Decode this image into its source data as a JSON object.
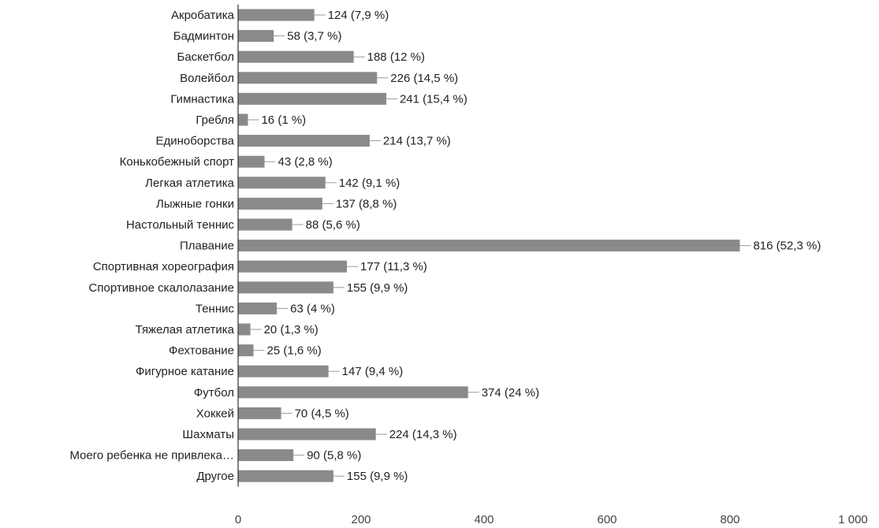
{
  "chart_data": {
    "type": "bar",
    "orientation": "horizontal",
    "categories": [
      "Акробатика",
      "Бадминтон",
      "Баскетбол",
      "Волейбол",
      "Гимнастика",
      "Гребля",
      "Единоборства",
      "Конькобежный спорт",
      "Легкая атлетика",
      "Лыжные гонки",
      "Настольный теннис",
      "Плавание",
      "Спортивная хореография",
      "Спортивное скалолазание",
      "Теннис",
      "Тяжелая атлетика",
      "Фехтование",
      "Фигурное катание",
      "Футбол",
      "Хоккей",
      "Шахматы",
      "Моего ребенка не привлека…",
      "Другое"
    ],
    "values": [
      124,
      58,
      188,
      226,
      241,
      16,
      214,
      43,
      142,
      137,
      88,
      816,
      177,
      155,
      63,
      20,
      25,
      147,
      374,
      70,
      224,
      90,
      155
    ],
    "value_labels": [
      "124 (7,9 %)",
      "58 (3,7 %)",
      "188 (12 %)",
      "226 (14,5 %)",
      "241 (15,4 %)",
      "16 (1 %)",
      "214 (13,7 %)",
      "43 (2,8 %)",
      "142 (9,1 %)",
      "137 (8,8 %)",
      "88 (5,6 %)",
      "816 (52,3 %)",
      "177 (11,3 %)",
      "155 (9,9 %)",
      "63 (4 %)",
      "20 (1,3 %)",
      "25 (1,6 %)",
      "147 (9,4 %)",
      "374 (24 %)",
      "70 (4,5 %)",
      "224 (14,3 %)",
      "90 (5,8 %)",
      "155 (9,9 %)"
    ],
    "xlim": [
      0,
      1000
    ],
    "x_ticks": [
      0,
      200,
      400,
      600,
      800,
      1000
    ],
    "x_tick_labels": [
      "0",
      "200",
      "400",
      "600",
      "800",
      "1 000"
    ],
    "grid": false,
    "bar_color": "#8a8a8a",
    "leader_color": "#9a9a9a"
  }
}
